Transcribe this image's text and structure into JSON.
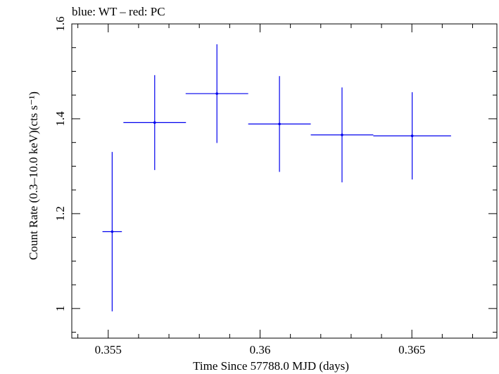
{
  "chart_data": {
    "type": "scatter",
    "title": "blue: WT – red: PC",
    "xlabel": "Time Since 57788.0 MJD (days)",
    "ylabel": "Count Rate (0.3–10.0 keV)(cts s⁻¹)",
    "xlim": [
      0.3538,
      0.3678
    ],
    "ylim": [
      0.9375,
      1.6
    ],
    "xticks": [
      0.355,
      0.36,
      0.365
    ],
    "xtick_labels": [
      "0.355",
      "0.36",
      "0.365"
    ],
    "yticks": [
      1.0,
      1.2,
      1.4,
      1.6
    ],
    "ytick_labels": [
      "1",
      "1.2",
      "1.4",
      "1.6"
    ],
    "grid": false,
    "series": [
      {
        "name": "WT",
        "color": "#0000ee",
        "points": [
          {
            "x": 0.35513,
            "y": 1.162,
            "xerr": 0.00032,
            "yerr_lo": 0.168,
            "yerr_hi": 0.168
          },
          {
            "x": 0.35653,
            "y": 1.392,
            "xerr": 0.00103,
            "yerr_lo": 0.1,
            "yerr_hi": 0.1
          },
          {
            "x": 0.35858,
            "y": 1.453,
            "xerr": 0.00103,
            "yerr_lo": 0.104,
            "yerr_hi": 0.104
          },
          {
            "x": 0.36064,
            "y": 1.389,
            "xerr": 0.00103,
            "yerr_lo": 0.101,
            "yerr_hi": 0.101
          },
          {
            "x": 0.3627,
            "y": 1.366,
            "xerr": 0.00103,
            "yerr_lo": 0.1,
            "yerr_hi": 0.1
          },
          {
            "x": 0.36501,
            "y": 1.364,
            "xerr": 0.00128,
            "yerr_lo": 0.092,
            "yerr_hi": 0.092
          }
        ]
      }
    ]
  }
}
